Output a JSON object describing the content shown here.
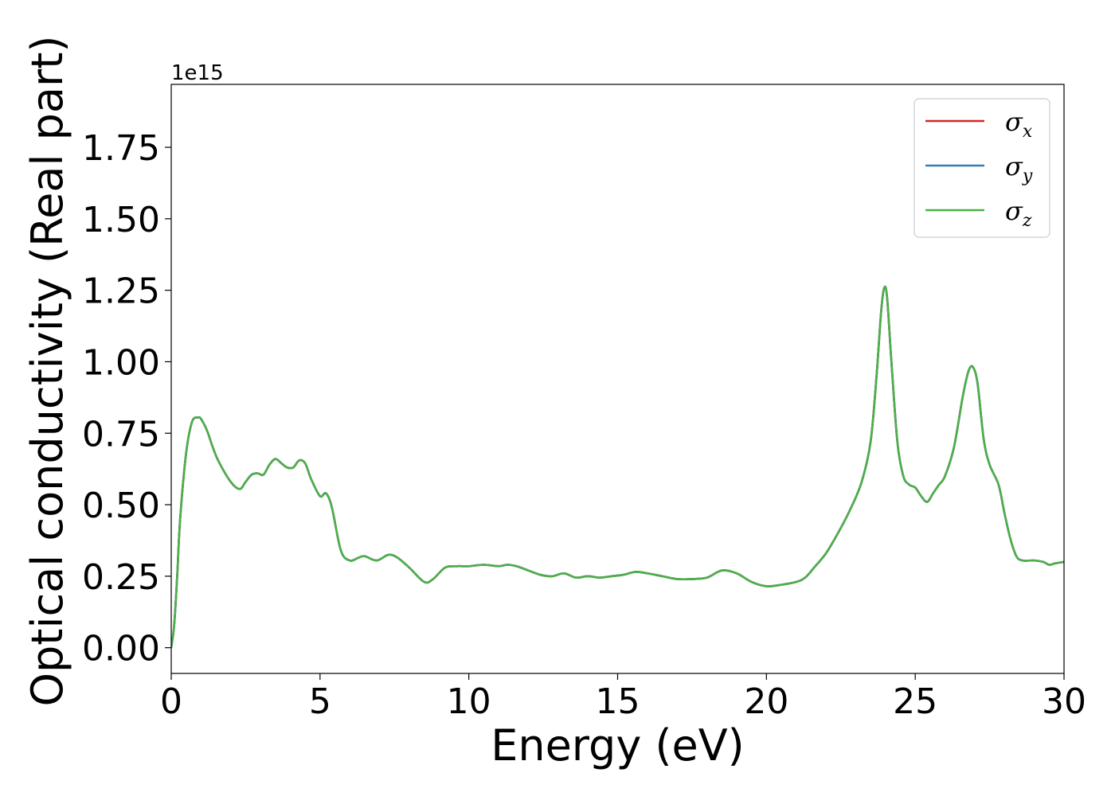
{
  "chart_data": {
    "type": "line",
    "title": "",
    "xlabel": "Energy (eV)",
    "ylabel": "Optical conductivity (Real part)",
    "y_offset_label": "1e15",
    "xlim": [
      0,
      30
    ],
    "ylim": [
      -0.09,
      1.97
    ],
    "grid": false,
    "legend_position": "top-right",
    "x_ticks": [
      0,
      5,
      10,
      15,
      20,
      25,
      30
    ],
    "x_tick_labels": [
      "0",
      "5",
      "10",
      "15",
      "20",
      "25",
      "30"
    ],
    "y_ticks": [
      0.0,
      0.25,
      0.5,
      0.75,
      1.0,
      1.25,
      1.5,
      1.75
    ],
    "y_tick_labels": [
      "0.00",
      "0.25",
      "0.50",
      "0.75",
      "1.00",
      "1.25",
      "1.50",
      "1.75"
    ],
    "x": [
      0,
      0.1,
      0.2,
      0.3,
      0.5,
      0.7,
      0.9,
      1.0,
      1.2,
      1.4,
      1.6,
      2.0,
      2.3,
      2.5,
      2.7,
      2.9,
      3.1,
      3.3,
      3.5,
      3.7,
      3.9,
      4.1,
      4.3,
      4.5,
      4.7,
      5.0,
      5.2,
      5.4,
      5.7,
      6.0,
      6.3,
      6.5,
      6.9,
      7.3,
      7.6,
      8.0,
      8.5,
      8.8,
      9.2,
      9.6,
      10.0,
      10.5,
      11.0,
      11.3,
      11.6,
      12.0,
      12.4,
      12.8,
      13.2,
      13.6,
      14.0,
      14.4,
      14.8,
      15.2,
      15.6,
      16.0,
      16.5,
      17.0,
      17.5,
      18.0,
      18.5,
      19.0,
      19.5,
      20.0,
      20.5,
      21.0,
      21.3,
      21.6,
      22.0,
      22.4,
      22.8,
      23.2,
      23.5,
      23.7,
      23.85,
      23.95,
      24.05,
      24.2,
      24.4,
      24.6,
      24.8,
      25.0,
      25.2,
      25.4,
      25.6,
      25.8,
      26.0,
      26.3,
      26.6,
      26.8,
      26.95,
      27.1,
      27.3,
      27.5,
      27.8,
      28.0,
      28.2,
      28.4,
      28.6,
      29.0,
      29.3,
      29.5,
      29.7,
      30.0
    ],
    "series": [
      {
        "name": "σx",
        "legend_main": "σ",
        "legend_sub": "x",
        "color": "#d62728",
        "y": [
          0.0,
          0.08,
          0.25,
          0.45,
          0.68,
          0.79,
          0.805,
          0.8,
          0.76,
          0.7,
          0.65,
          0.58,
          0.555,
          0.58,
          0.605,
          0.61,
          0.605,
          0.64,
          0.66,
          0.645,
          0.63,
          0.63,
          0.655,
          0.645,
          0.59,
          0.53,
          0.54,
          0.49,
          0.34,
          0.305,
          0.315,
          0.32,
          0.305,
          0.325,
          0.315,
          0.28,
          0.23,
          0.24,
          0.28,
          0.285,
          0.285,
          0.29,
          0.285,
          0.29,
          0.285,
          0.27,
          0.255,
          0.25,
          0.26,
          0.245,
          0.25,
          0.245,
          0.25,
          0.255,
          0.265,
          0.26,
          0.25,
          0.24,
          0.24,
          0.245,
          0.27,
          0.26,
          0.23,
          0.215,
          0.22,
          0.23,
          0.245,
          0.28,
          0.33,
          0.4,
          0.48,
          0.58,
          0.72,
          0.95,
          1.17,
          1.255,
          1.23,
          1.0,
          0.72,
          0.6,
          0.57,
          0.56,
          0.53,
          0.51,
          0.54,
          0.57,
          0.6,
          0.7,
          0.88,
          0.97,
          0.98,
          0.92,
          0.73,
          0.64,
          0.57,
          0.47,
          0.38,
          0.32,
          0.305,
          0.305,
          0.3,
          0.29,
          0.295,
          0.3
        ]
      },
      {
        "name": "σy",
        "legend_main": "σ",
        "legend_sub": "y",
        "color": "#377eb8",
        "y": [
          0.0,
          0.08,
          0.25,
          0.45,
          0.68,
          0.79,
          0.805,
          0.8,
          0.76,
          0.7,
          0.65,
          0.58,
          0.555,
          0.58,
          0.605,
          0.61,
          0.605,
          0.64,
          0.66,
          0.645,
          0.63,
          0.63,
          0.655,
          0.645,
          0.59,
          0.53,
          0.54,
          0.49,
          0.34,
          0.305,
          0.315,
          0.32,
          0.305,
          0.325,
          0.315,
          0.28,
          0.23,
          0.24,
          0.28,
          0.285,
          0.285,
          0.29,
          0.285,
          0.29,
          0.285,
          0.27,
          0.255,
          0.25,
          0.26,
          0.245,
          0.25,
          0.245,
          0.25,
          0.255,
          0.265,
          0.26,
          0.25,
          0.24,
          0.24,
          0.245,
          0.27,
          0.26,
          0.23,
          0.215,
          0.22,
          0.23,
          0.245,
          0.28,
          0.33,
          0.4,
          0.48,
          0.58,
          0.72,
          0.95,
          1.17,
          1.255,
          1.23,
          1.0,
          0.72,
          0.6,
          0.57,
          0.56,
          0.53,
          0.51,
          0.54,
          0.57,
          0.6,
          0.7,
          0.88,
          0.97,
          0.98,
          0.92,
          0.73,
          0.64,
          0.57,
          0.47,
          0.38,
          0.32,
          0.305,
          0.305,
          0.3,
          0.29,
          0.295,
          0.3
        ]
      },
      {
        "name": "σz",
        "legend_main": "σ",
        "legend_sub": "z",
        "color": "#4daf4a",
        "y": [
          0.0,
          0.08,
          0.25,
          0.45,
          0.68,
          0.79,
          0.805,
          0.8,
          0.76,
          0.7,
          0.65,
          0.58,
          0.555,
          0.58,
          0.605,
          0.61,
          0.605,
          0.64,
          0.66,
          0.645,
          0.63,
          0.63,
          0.655,
          0.645,
          0.59,
          0.53,
          0.54,
          0.49,
          0.34,
          0.305,
          0.315,
          0.32,
          0.305,
          0.325,
          0.315,
          0.28,
          0.23,
          0.24,
          0.28,
          0.285,
          0.285,
          0.29,
          0.285,
          0.29,
          0.285,
          0.27,
          0.255,
          0.25,
          0.26,
          0.245,
          0.25,
          0.245,
          0.25,
          0.255,
          0.265,
          0.26,
          0.25,
          0.24,
          0.24,
          0.245,
          0.27,
          0.26,
          0.23,
          0.215,
          0.22,
          0.23,
          0.245,
          0.28,
          0.33,
          0.4,
          0.48,
          0.58,
          0.72,
          0.95,
          1.17,
          1.255,
          1.23,
          1.0,
          0.72,
          0.6,
          0.57,
          0.56,
          0.53,
          0.51,
          0.54,
          0.57,
          0.6,
          0.7,
          0.88,
          0.97,
          0.98,
          0.92,
          0.73,
          0.64,
          0.57,
          0.47,
          0.38,
          0.32,
          0.305,
          0.305,
          0.3,
          0.29,
          0.295,
          0.3
        ]
      }
    ]
  }
}
